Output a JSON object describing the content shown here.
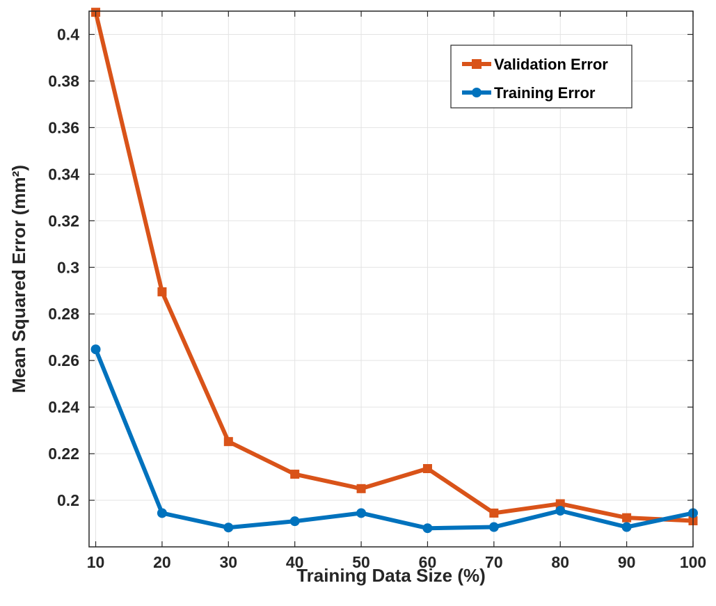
{
  "chart_data": {
    "type": "line",
    "xlabel": "Training Data Size (%)",
    "ylabel": "Mean Squared Error (mm²)",
    "x": [
      10,
      20,
      30,
      40,
      50,
      60,
      70,
      80,
      90,
      100
    ],
    "xlim": [
      9,
      100
    ],
    "ylim": [
      0.18,
      0.41
    ],
    "xticks": [
      "10",
      "20",
      "30",
      "40",
      "50",
      "60",
      "70",
      "80",
      "90",
      "100"
    ],
    "yticks": [
      "0.2",
      "0.22",
      "0.24",
      "0.26",
      "0.28",
      "0.3",
      "0.32",
      "0.34",
      "0.36",
      "0.38",
      "0.4"
    ],
    "ytick_values": [
      0.2,
      0.22,
      0.24,
      0.26,
      0.28,
      0.3,
      0.32,
      0.34,
      0.36,
      0.38,
      0.4
    ],
    "grid": true,
    "legend_position": "top-right",
    "series": [
      {
        "name": "Validation Error",
        "color": "#D95319",
        "marker": "square",
        "values": [
          0.4095,
          0.2895,
          0.2252,
          0.2112,
          0.205,
          0.2136,
          0.1945,
          0.1985,
          0.1925,
          0.1912
        ]
      },
      {
        "name": "Training Error",
        "color": "#0072BD",
        "marker": "circle",
        "values": [
          0.2648,
          0.1945,
          0.1883,
          0.191,
          0.1945,
          0.188,
          0.1885,
          0.1955,
          0.1885,
          0.1945
        ]
      }
    ]
  }
}
